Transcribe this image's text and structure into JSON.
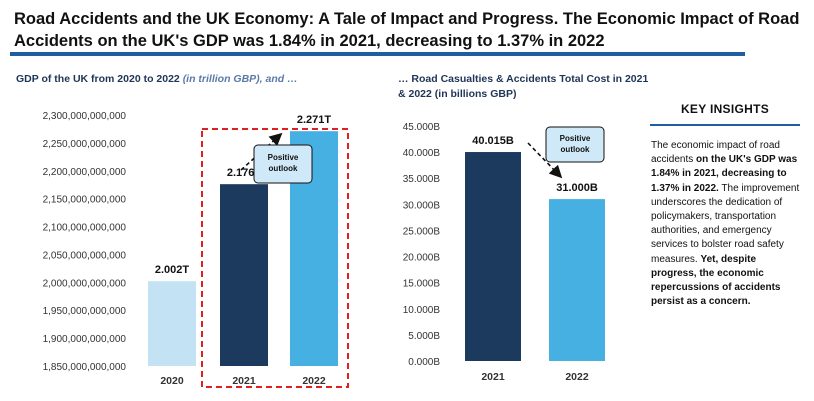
{
  "header": {
    "title": "Road Accidents and the UK Economy: A Tale of Impact and Progress. The Economic Impact of Road Accidents on the UK's GDP was 1.84% in 2021, decreasing to 1.37% in 2022"
  },
  "colors": {
    "rule": "#1f5fa0",
    "light_bar": "#c3e3f4",
    "dark_bar": "#1b3a5e",
    "mid_bar": "#47b0e3",
    "callout_bg": "#cfe9f8",
    "dashed_box": "#e02020"
  },
  "chart_data": [
    {
      "type": "bar",
      "subtitle_main": "GDP of the UK from 2020 to 2022 ",
      "subtitle_em": "(in trillion GBP), and …",
      "categories": [
        "2020",
        "2021",
        "2022"
      ],
      "values": [
        2002000000000,
        2176000000000,
        2271000000000
      ],
      "data_labels": [
        "2.002T",
        "2.176T",
        "2.271T"
      ],
      "ylim": [
        1850000000000,
        2300000000000
      ],
      "yticks": [
        "2,300,000,000,000",
        "2,250,000,000,000",
        "2,200,000,000,000",
        "2,150,000,000,000",
        "2,100,000,000,000",
        "2,050,000,000,000",
        "2,000,000,000,000",
        "1,950,000,000,000",
        "1,900,000,000,000",
        "1,850,000,000,000"
      ],
      "callout": [
        "Positive",
        "outlook"
      ],
      "highlight": [
        "2021",
        "2022"
      ],
      "grid": false
    },
    {
      "type": "bar",
      "subtitle_main": "… Road Casualties & Accidents Total Cost in 2021 & 2022 (in billions GBP)",
      "categories": [
        "2021",
        "2022"
      ],
      "values": [
        40.015,
        31.0
      ],
      "data_labels": [
        "40.015B",
        "31.000B"
      ],
      "ylim": [
        0,
        45
      ],
      "yticks": [
        "45.000B",
        "40.000B",
        "35.000B",
        "30.000B",
        "25.000B",
        "20.000B",
        "15.000B",
        "10.000B",
        "5.000B",
        "0.000B"
      ],
      "callout": [
        "Positive",
        "outlook"
      ],
      "grid": false
    }
  ],
  "insights": {
    "title": "KEY INSIGHTS",
    "p1": "The economic impact of road accidents ",
    "p1b": "on the UK's GDP was 1.84% in 2021, decreasing to 1.37% in 2022.",
    "p2": " The improvement underscores the dedication of policymakers, transportation authorities, and emergency services to bolster road safety measures. ",
    "p2b": "Yet, despite progress, the economic repercussions of accidents persist as a concern."
  }
}
